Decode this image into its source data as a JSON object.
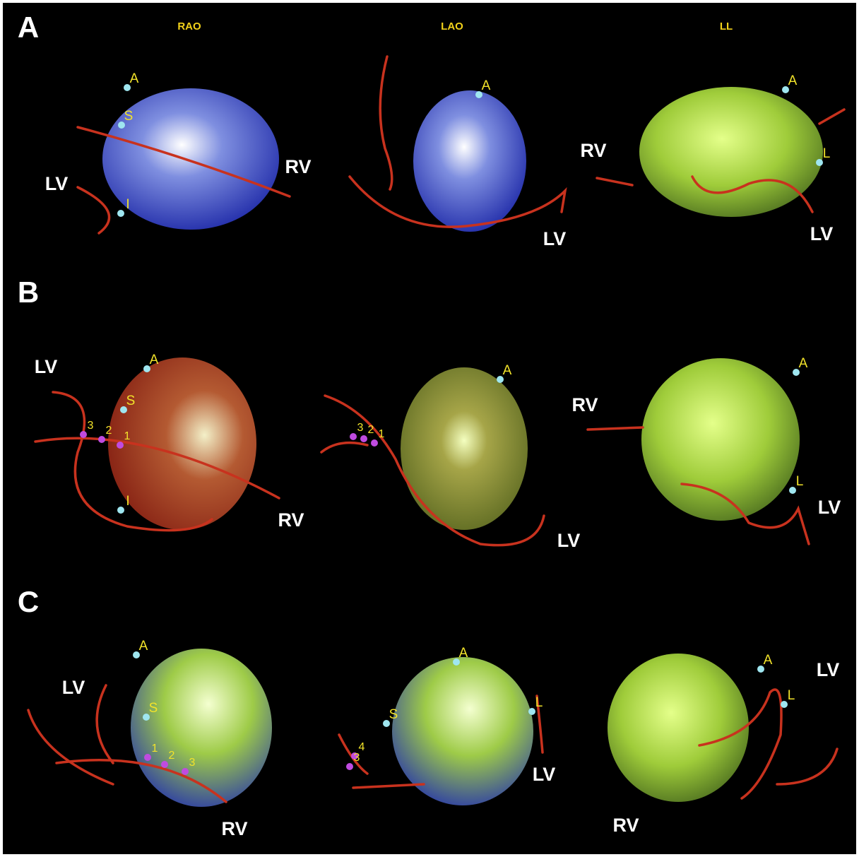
{
  "panels": [
    {
      "label": "A",
      "views": [
        {
          "title": "RAO",
          "annotations": [
            "A",
            "S",
            "I",
            "LV",
            "RV"
          ]
        },
        {
          "title": "LAO",
          "annotations": [
            "A",
            "LV"
          ]
        },
        {
          "title": "LL",
          "annotations": [
            "A",
            "L",
            "RV",
            "LV"
          ]
        }
      ]
    },
    {
      "label": "B",
      "views": [
        {
          "annotations": [
            "A",
            "S",
            "3",
            "2",
            "1",
            "I",
            "LV",
            "RV"
          ]
        },
        {
          "annotations": [
            "A",
            "3",
            "2",
            "1",
            "LV"
          ]
        },
        {
          "annotations": [
            "A",
            "L",
            "RV",
            "LV"
          ]
        }
      ]
    },
    {
      "label": "C",
      "views": [
        {
          "annotations": [
            "A",
            "S",
            "1",
            "2",
            "3",
            "LV",
            "RV"
          ]
        },
        {
          "annotations": [
            "A",
            "S",
            "L",
            "4",
            "3",
            "LV"
          ]
        },
        {
          "annotations": [
            "A",
            "L",
            "LV",
            "RV"
          ]
        }
      ]
    }
  ]
}
